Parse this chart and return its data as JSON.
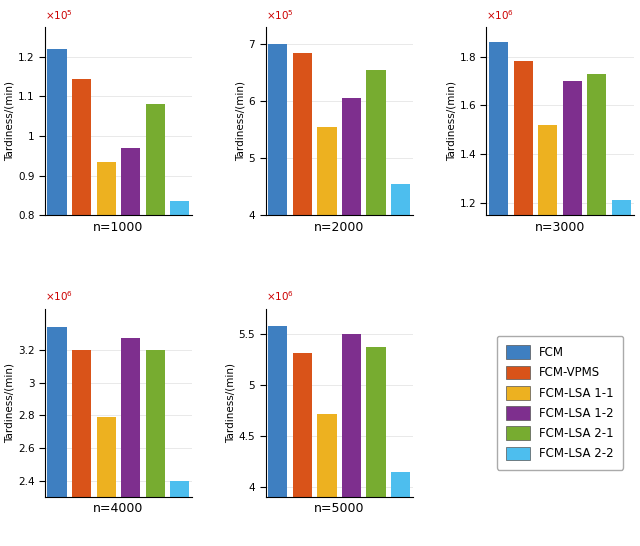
{
  "subplots": [
    {
      "title": "n=1000",
      "scale_exp": 5,
      "ylim": [
        80000.0,
        127500.0
      ],
      "yticks": [
        80000.0,
        90000.0,
        100000.0,
        110000.0,
        120000.0
      ],
      "ytick_labels": [
        "0.8",
        "0.9",
        "1",
        "1.1",
        "1.2"
      ],
      "values": [
        122000.0,
        114500.0,
        93500.0,
        97000.0,
        108000.0,
        83500.0
      ]
    },
    {
      "title": "n=2000",
      "scale_exp": 5,
      "ylim": [
        400000.0,
        730000.0
      ],
      "yticks": [
        400000.0,
        500000.0,
        600000.0,
        700000.0
      ],
      "ytick_labels": [
        "4",
        "5",
        "6",
        "7"
      ],
      "values": [
        700000.0,
        685000.0,
        555000.0,
        605000.0,
        655000.0,
        455000.0
      ]
    },
    {
      "title": "n=3000",
      "scale_exp": 6,
      "ylim": [
        1150000.0,
        1920000.0
      ],
      "yticks": [
        1200000.0,
        1400000.0,
        1600000.0,
        1800000.0
      ],
      "ytick_labels": [
        "1.2",
        "1.4",
        "1.6",
        "1.8"
      ],
      "values": [
        1860000.0,
        1780000.0,
        1520000.0,
        1700000.0,
        1730000.0,
        1210000.0
      ]
    },
    {
      "title": "n=4000",
      "scale_exp": 6,
      "ylim": [
        2300000.0,
        3450000.0
      ],
      "yticks": [
        2400000.0,
        2600000.0,
        2800000.0,
        3000000.0,
        3200000.0
      ],
      "ytick_labels": [
        "2.4",
        "2.6",
        "2.8",
        "3",
        "3.2"
      ],
      "values": [
        3340000.0,
        3200000.0,
        2790000.0,
        3270000.0,
        3200000.0,
        2400000.0
      ]
    },
    {
      "title": "n=5000",
      "scale_exp": 6,
      "ylim": [
        3900000.0,
        5750000.0
      ],
      "yticks": [
        4000000.0,
        4500000.0,
        5000000.0,
        5500000.0
      ],
      "ytick_labels": [
        "4",
        "4.5",
        "5",
        "5.5"
      ],
      "values": [
        5580000.0,
        5320000.0,
        4720000.0,
        5500000.0,
        5380000.0,
        4140000.0
      ]
    }
  ],
  "bar_colors": [
    "#3e7fc1",
    "#d95319",
    "#edb120",
    "#7e2f8e",
    "#77ac30",
    "#4dbeee"
  ],
  "legend_labels": [
    "FCM",
    "FCM-VPMS",
    "FCM-LSA 1-1",
    "FCM-LSA 1-2",
    "FCM-LSA 2-1",
    "FCM-LSA 2-2"
  ],
  "ylabel": "Tardiness/(min)",
  "background_color": "#ffffff"
}
